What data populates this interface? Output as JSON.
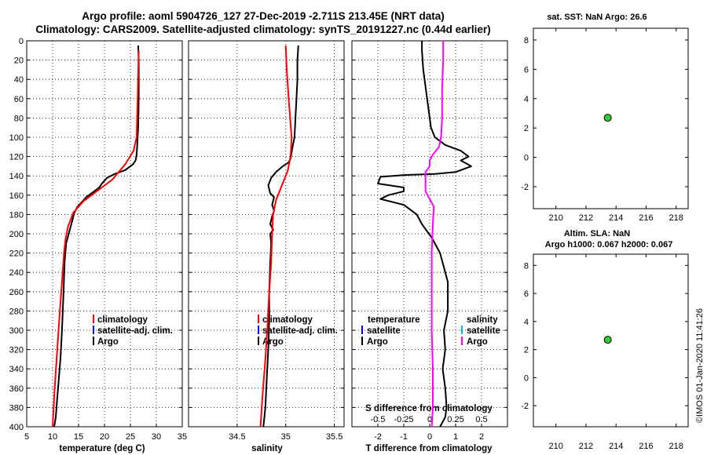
{
  "header": {
    "line1": "Argo profile: aoml 5904726_127 27-Dec-2019 -2.711S 213.45E (NRT data)",
    "line2": "Climatology: CARS2009. Satellite-adjusted climatology: synTS_20191227.nc (0.44d earlier)"
  },
  "colors": {
    "argo": "#000000",
    "climatology": "#ff0000",
    "satellite": "#0000ff",
    "argo_salinity_diff": "#ff00ff",
    "satellite_salinity": "#00c0ff",
    "marker": "#33cc33",
    "grid": "#000000"
  },
  "legend": {
    "climatology": "climatology",
    "satellite_adj": "satellite-adj. clim.",
    "argo": "Argo",
    "temperature": "temperature",
    "salinity": "salinity",
    "satellite": "satellite"
  },
  "side": {
    "sst_title": "sat. SST: NaN Argo: 26.6",
    "sla_title1": "Altim. SLA: NaN",
    "sla_title2": "Argo h1000: 0.067 h2000: 0.067"
  },
  "watermark": "©IMOS 01-Jan-2020 11:41:26",
  "chart_data": [
    {
      "type": "line",
      "id": "temperature",
      "xlabel": "temperature (deg C)",
      "ylabel": "",
      "xlim": [
        5,
        35
      ],
      "ylim": [
        0,
        400
      ],
      "y_reversed": true,
      "xticks": [
        5,
        10,
        15,
        20,
        25,
        30,
        35
      ],
      "yticks": [
        0,
        20,
        40,
        60,
        80,
        100,
        120,
        140,
        160,
        180,
        200,
        220,
        240,
        260,
        280,
        300,
        320,
        340,
        360,
        380,
        400
      ],
      "grid": true,
      "series": [
        {
          "name": "Argo",
          "x": [
            26.5,
            26.6,
            26.6,
            26.5,
            26.4,
            26.3,
            26.2,
            26.0,
            25.5,
            24.0,
            22.0,
            20.5,
            19.5,
            19.0,
            18.0,
            16.5,
            14.8,
            14.2,
            13.8,
            13.3,
            12.6,
            12.3,
            12.1,
            11.8,
            11.5,
            11.2,
            10.9,
            10.6,
            10.3
          ],
          "y": [
            5,
            20,
            60,
            90,
            100,
            110,
            118,
            124,
            128,
            134,
            138,
            142,
            148,
            152,
            156,
            162,
            172,
            178,
            186,
            196,
            210,
            230,
            260,
            300,
            330,
            350,
            370,
            390,
            400
          ]
        },
        {
          "name": "climatology",
          "x": [
            26.6,
            26.4,
            26.2,
            25.6,
            24.0,
            21.5,
            19.0,
            16.0,
            14.0,
            13.0,
            12.5,
            12.2,
            11.8,
            11.4,
            10.9,
            10.4,
            10.0
          ],
          "y": [
            10,
            60,
            100,
            114,
            128,
            144,
            154,
            166,
            178,
            192,
            205,
            220,
            250,
            280,
            320,
            360,
            400
          ]
        }
      ]
    },
    {
      "type": "line",
      "id": "salinity",
      "xlabel": "salinity",
      "xlim": [
        34.0,
        35.6
      ],
      "ylim": [
        0,
        400
      ],
      "y_reversed": true,
      "xticks": [
        34.5,
        35,
        35.5
      ],
      "yticks": [
        0,
        20,
        40,
        60,
        80,
        100,
        120,
        140,
        160,
        180,
        200,
        220,
        240,
        260,
        280,
        300,
        320,
        340,
        360,
        380,
        400
      ],
      "grid": true,
      "series": [
        {
          "name": "Argo",
          "x": [
            35.13,
            35.12,
            35.12,
            35.11,
            35.1,
            35.09,
            35.07,
            35.06,
            35.05,
            35.03,
            34.97,
            34.9,
            34.85,
            34.82,
            34.84,
            34.88,
            34.86,
            34.88,
            34.86,
            34.84,
            34.87,
            34.84,
            34.85,
            34.84,
            34.83,
            34.83,
            34.82,
            34.81,
            34.8,
            34.79,
            34.77
          ],
          "y": [
            5,
            20,
            40,
            60,
            80,
            100,
            110,
            116,
            122,
            126,
            130,
            136,
            142,
            150,
            158,
            162,
            170,
            176,
            182,
            190,
            196,
            200,
            210,
            230,
            260,
            290,
            320,
            340,
            360,
            380,
            400
          ]
        },
        {
          "name": "climatology",
          "x": [
            35.0,
            35.01,
            35.03,
            35.06,
            35.05,
            35.02,
            34.96,
            34.9,
            34.87,
            34.86,
            34.85,
            34.83,
            34.81,
            34.79,
            34.76,
            34.74
          ],
          "y": [
            5,
            30,
            60,
            100,
            120,
            135,
            150,
            165,
            180,
            200,
            230,
            260,
            300,
            330,
            370,
            400
          ]
        }
      ]
    },
    {
      "type": "line",
      "id": "difference",
      "xlabel": "T difference from climatology",
      "x2label": "S difference from climatology",
      "xlim": [
        -3,
        3
      ],
      "x2lim": [
        -0.75,
        0.75
      ],
      "ylim": [
        0,
        400
      ],
      "y_reversed": true,
      "xticks": [
        -2,
        -1,
        0,
        1,
        2
      ],
      "x2ticks": [
        -0.5,
        -0.25,
        0,
        0.25,
        0.5
      ],
      "yticks": [
        0,
        20,
        40,
        60,
        80,
        100,
        120,
        140,
        160,
        180,
        200,
        220,
        240,
        260,
        280,
        300,
        320,
        340,
        360,
        380,
        400
      ],
      "grid": true,
      "series": [
        {
          "name": "Argo temperature",
          "x": [
            -0.3,
            -0.3,
            -0.25,
            -0.1,
            0.0,
            0.05,
            0.2,
            0.6,
            1.2,
            1.5,
            1.2,
            1.6,
            1.0,
            0.2,
            -0.9,
            -1.9,
            -2.0,
            -1.0,
            -1.0,
            -1.6,
            -1.9,
            -1.0,
            -0.5,
            -0.3,
            0.1,
            0.4,
            0.7,
            0.7,
            0.55,
            0.6,
            0.5,
            0.6,
            0.65,
            0.6,
            0.4
          ],
          "y": [
            0,
            10,
            30,
            60,
            80,
            90,
            100,
            108,
            114,
            120,
            124,
            130,
            136,
            138,
            139,
            141,
            148,
            152,
            156,
            160,
            164,
            170,
            180,
            190,
            205,
            220,
            250,
            280,
            300,
            320,
            340,
            360,
            380,
            390,
            400
          ]
        },
        {
          "name": "Argo salinity",
          "x": [
            0.13,
            0.13,
            0.12,
            0.12,
            0.11,
            0.09,
            0.03,
            0.0,
            0.0,
            -0.04,
            -0.04,
            -0.04,
            0.0,
            0.04,
            0.03,
            0.02,
            0.02,
            0.02,
            0.03,
            0.03,
            0.02
          ],
          "y": [
            0,
            20,
            50,
            80,
            100,
            110,
            118,
            124,
            130,
            136,
            146,
            156,
            164,
            172,
            190,
            220,
            260,
            300,
            340,
            380,
            400
          ]
        }
      ]
    },
    {
      "type": "scatter",
      "id": "sst",
      "title": "sat. SST: NaN Argo: 26.6",
      "xlim": [
        208.5,
        218.8
      ],
      "ylim": [
        -3.5,
        8.8
      ],
      "xticks": [
        210,
        212,
        214,
        216,
        218
      ],
      "yticks": [
        -2,
        0,
        2,
        4,
        6,
        8
      ],
      "points": [
        {
          "x": 213.45,
          "y": 2.7
        }
      ]
    },
    {
      "type": "scatter",
      "id": "sla",
      "title": "Altim. SLA: NaN",
      "xlim": [
        208.5,
        218.8
      ],
      "ylim": [
        -3.5,
        8.8
      ],
      "xticks": [
        210,
        212,
        214,
        216,
        218
      ],
      "yticks": [
        -2,
        0,
        2,
        4,
        6,
        8
      ],
      "points": [
        {
          "x": 213.45,
          "y": 2.7
        }
      ]
    }
  ]
}
